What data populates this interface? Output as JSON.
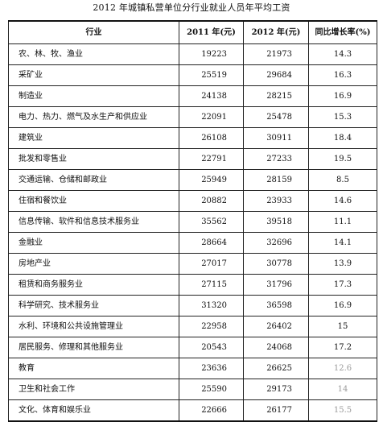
{
  "title": "2012 年城镇私营单位分行业就业人员年平均工资",
  "table": {
    "headers": {
      "industry": "行业",
      "y2011": "2011 年(元)",
      "y2012": "2012 年(元)",
      "growth": "同比增长率(%)"
    },
    "rows": [
      {
        "industry": "农、林、牧、渔业",
        "y2011": "19223",
        "y2012": "21973",
        "growth": "14.3"
      },
      {
        "industry": "采矿业",
        "y2011": "25519",
        "y2012": "29684",
        "growth": "16.3"
      },
      {
        "industry": "制造业",
        "y2011": "24138",
        "y2012": "28215",
        "growth": "16.9"
      },
      {
        "industry": "电力、热力、燃气及水生产和供应业",
        "y2011": "22091",
        "y2012": "25478",
        "growth": "15.3"
      },
      {
        "industry": "建筑业",
        "y2011": "26108",
        "y2012": "30911",
        "growth": "18.4"
      },
      {
        "industry": "批发和零售业",
        "y2011": "22791",
        "y2012": "27233",
        "growth": "19.5"
      },
      {
        "industry": "交通运输、仓储和邮政业",
        "y2011": "25949",
        "y2012": "28159",
        "growth": "8.5"
      },
      {
        "industry": "住宿和餐饮业",
        "y2011": "20882",
        "y2012": "23933",
        "growth": "14.6"
      },
      {
        "industry": "信息传输、软件和信息技术服务业",
        "y2011": "35562",
        "y2012": "39518",
        "growth": "11.1"
      },
      {
        "industry": "金融业",
        "y2011": "28664",
        "y2012": "32696",
        "growth": "14.1"
      },
      {
        "industry": "房地产业",
        "y2011": "27017",
        "y2012": "30778",
        "growth": "13.9"
      },
      {
        "industry": "租赁和商务服务业",
        "y2011": "27115",
        "y2012": "31796",
        "growth": "17.3"
      },
      {
        "industry": "科学研究、技术服务业",
        "y2011": "31320",
        "y2012": "36598",
        "growth": "16.9"
      },
      {
        "industry": "水利、环境和公共设施管理业",
        "y2011": "22958",
        "y2012": "26402",
        "growth": "15"
      },
      {
        "industry": "居民服务、修理和其他服务业",
        "y2011": "20543",
        "y2012": "24068",
        "growth": "17.2"
      },
      {
        "industry": "教育",
        "y2011": "23636",
        "y2012": "26625",
        "growth": "12.6"
      },
      {
        "industry": "卫生和社会工作",
        "y2011": "25590",
        "y2012": "29173",
        "growth": "14"
      },
      {
        "industry": "文化、体育和娱乐业",
        "y2011": "22666",
        "y2012": "26177",
        "growth": "15.5"
      }
    ]
  },
  "colors": {
    "text": "#111111",
    "border": "#222222",
    "faded_text": "#9a9a9a"
  }
}
